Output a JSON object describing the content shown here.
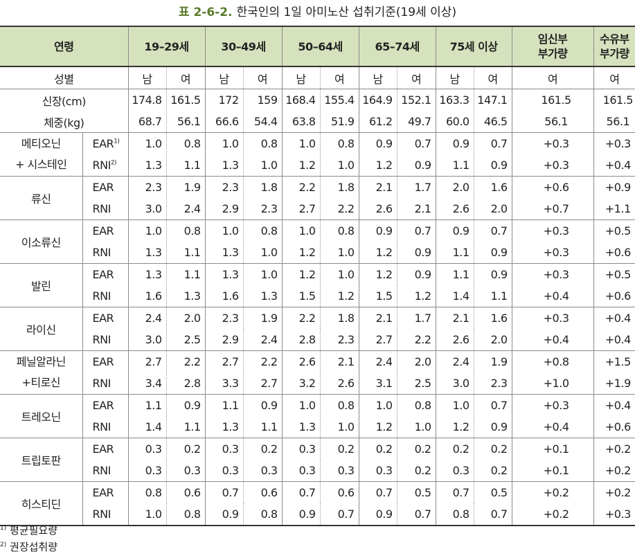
{
  "caption": {
    "number": "표 2-6-2.",
    "title": "한국인의 1일 아미노산 섭취기준(19세 이상)"
  },
  "header": {
    "age_label": "연령",
    "age_groups": [
      "19–29세",
      "30–49세",
      "50–64세",
      "65–74세",
      "75세 이상"
    ],
    "pregnancy_line1": "임신부",
    "pregnancy_line2": "부가량",
    "lactation_line1": "수유부",
    "lactation_line2": "부가량"
  },
  "sex_row": {
    "label": "성별",
    "values": [
      "남",
      "여",
      "남",
      "여",
      "남",
      "여",
      "남",
      "여",
      "남",
      "여",
      "여",
      "여"
    ]
  },
  "height_row": {
    "label": "신장(cm)",
    "values": [
      "174.8",
      "161.5",
      "172",
      "159",
      "168.4",
      "155.4",
      "164.9",
      "152.1",
      "163.3",
      "147.1",
      "161.5",
      "161.5"
    ]
  },
  "weight_row": {
    "label": "체중(kg)",
    "values": [
      "68.7",
      "56.1",
      "66.6",
      "54.4",
      "63.8",
      "51.9",
      "61.2",
      "49.7",
      "60.0",
      "46.5",
      "56.1",
      "56.1"
    ]
  },
  "amino_acids": [
    {
      "name_line1": "메티오닌",
      "name_line2": "+ 시스테인",
      "ear_label": "EAR",
      "ear_sup": "1)",
      "rni_label": "RNI",
      "rni_sup": "2)",
      "ear": [
        "1.0",
        "0.8",
        "1.0",
        "0.8",
        "1.0",
        "0.8",
        "0.9",
        "0.7",
        "0.9",
        "0.7",
        "+0.3",
        "+0.3"
      ],
      "rni": [
        "1.3",
        "1.1",
        "1.3",
        "1.0",
        "1.2",
        "1.0",
        "1.2",
        "0.9",
        "1.1",
        "0.9",
        "+0.3",
        "+0.4"
      ]
    },
    {
      "name_line1": "류신",
      "name_line2": "",
      "ear_label": "EAR",
      "ear_sup": "",
      "rni_label": "RNI",
      "rni_sup": "",
      "ear": [
        "2.3",
        "1.9",
        "2.3",
        "1.8",
        "2.2",
        "1.8",
        "2.1",
        "1.7",
        "2.0",
        "1.6",
        "+0.6",
        "+0.9"
      ],
      "rni": [
        "3.0",
        "2.4",
        "2.9",
        "2.3",
        "2.7",
        "2.2",
        "2.6",
        "2.1",
        "2.6",
        "2.0",
        "+0.7",
        "+1.1"
      ]
    },
    {
      "name_line1": "이소류신",
      "name_line2": "",
      "ear_label": "EAR",
      "ear_sup": "",
      "rni_label": "RNI",
      "rni_sup": "",
      "ear": [
        "1.0",
        "0.8",
        "1.0",
        "0.8",
        "1.0",
        "0.8",
        "0.9",
        "0.7",
        "0.9",
        "0.7",
        "+0.3",
        "+0.5"
      ],
      "rni": [
        "1.3",
        "1.1",
        "1.3",
        "1.0",
        "1.2",
        "1.0",
        "1.2",
        "0.9",
        "1.1",
        "0.9",
        "+0.3",
        "+0.6"
      ]
    },
    {
      "name_line1": "발린",
      "name_line2": "",
      "ear_label": "EAR",
      "ear_sup": "",
      "rni_label": "RNI",
      "rni_sup": "",
      "ear": [
        "1.3",
        "1.1",
        "1.3",
        "1.0",
        "1.2",
        "1.0",
        "1.2",
        "0.9",
        "1.1",
        "0.9",
        "+0.3",
        "+0.5"
      ],
      "rni": [
        "1.6",
        "1.3",
        "1.6",
        "1.3",
        "1.5",
        "1.2",
        "1.5",
        "1.2",
        "1.4",
        "1.1",
        "+0.4",
        "+0.6"
      ]
    },
    {
      "name_line1": "라이신",
      "name_line2": "",
      "ear_label": "EAR",
      "ear_sup": "",
      "rni_label": "RNI",
      "rni_sup": "",
      "ear": [
        "2.4",
        "2.0",
        "2.3",
        "1.9",
        "2.2",
        "1.8",
        "2.1",
        "1.7",
        "2.1",
        "1.6",
        "+0.3",
        "+0.4"
      ],
      "rni": [
        "3.0",
        "2.5",
        "2.9",
        "2.4",
        "2.8",
        "2.3",
        "2.7",
        "2.2",
        "2.6",
        "2.0",
        "+0.4",
        "+0.4"
      ]
    },
    {
      "name_line1": "페닐알라닌",
      "name_line2": "+티로신",
      "ear_label": "EAR",
      "ear_sup": "",
      "rni_label": "RNI",
      "rni_sup": "",
      "ear": [
        "2.7",
        "2.2",
        "2.7",
        "2.2",
        "2.6",
        "2.1",
        "2.4",
        "2.0",
        "2.4",
        "1.9",
        "+0.8",
        "+1.5"
      ],
      "rni": [
        "3.4",
        "2.8",
        "3.3",
        "2.7",
        "3.2",
        "2.6",
        "3.1",
        "2.5",
        "3.0",
        "2.3",
        "+1.0",
        "+1.9"
      ]
    },
    {
      "name_line1": "트레오닌",
      "name_line2": "",
      "ear_label": "EAR",
      "ear_sup": "",
      "rni_label": "RNI",
      "rni_sup": "",
      "ear": [
        "1.1",
        "0.9",
        "1.1",
        "0.9",
        "1.0",
        "0.8",
        "1.0",
        "0.8",
        "1.0",
        "0.7",
        "+0.3",
        "+0.4"
      ],
      "rni": [
        "1.4",
        "1.1",
        "1.3",
        "1.1",
        "1.3",
        "1.0",
        "1.2",
        "1.0",
        "1.2",
        "0.9",
        "+0.4",
        "+0.6"
      ]
    },
    {
      "name_line1": "트립토판",
      "name_line2": "",
      "ear_label": "EAR",
      "ear_sup": "",
      "rni_label": "RNI",
      "rni_sup": "",
      "ear": [
        "0.3",
        "0.2",
        "0.3",
        "0.2",
        "0.3",
        "0.2",
        "0.2",
        "0.2",
        "0.2",
        "0.2",
        "+0.1",
        "+0.2"
      ],
      "rni": [
        "0.3",
        "0.3",
        "0.3",
        "0.3",
        "0.3",
        "0.3",
        "0.3",
        "0.2",
        "0.3",
        "0.2",
        "+0.1",
        "+0.2"
      ]
    },
    {
      "name_line1": "히스티딘",
      "name_line2": "",
      "ear_label": "EAR",
      "ear_sup": "",
      "rni_label": "RNI",
      "rni_sup": "",
      "ear": [
        "0.8",
        "0.6",
        "0.7",
        "0.6",
        "0.7",
        "0.6",
        "0.7",
        "0.5",
        "0.7",
        "0.5",
        "+0.2",
        "+0.2"
      ],
      "rni": [
        "1.0",
        "0.8",
        "0.9",
        "0.8",
        "0.9",
        "0.7",
        "0.9",
        "0.7",
        "0.8",
        "0.7",
        "+0.2",
        "+0.3"
      ]
    }
  ],
  "footnotes": [
    {
      "marker": "1)",
      "text": "평균필요량"
    },
    {
      "marker": "2)",
      "text": "권장섭취량"
    }
  ],
  "colors": {
    "header_bg": "#d6e2bd",
    "caption_number": "#5a7a2a"
  }
}
